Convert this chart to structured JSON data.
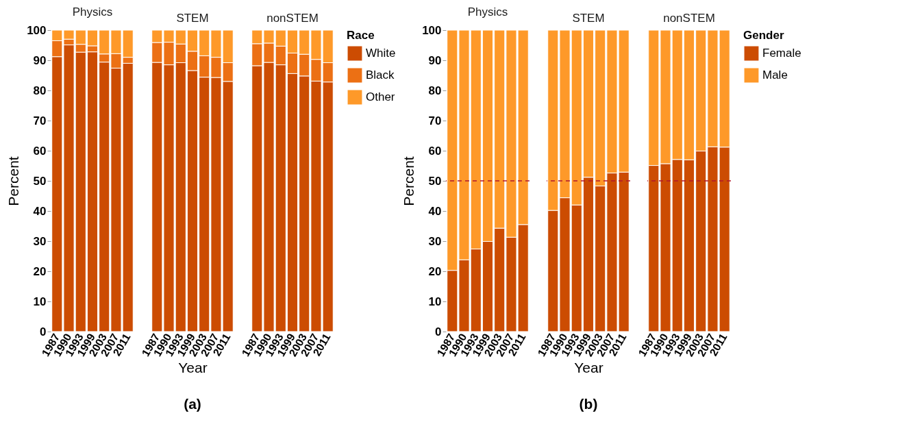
{
  "chart_data": [
    {
      "type": "bar",
      "title": "Physics",
      "ylabel": "Percent",
      "categories": [
        "1987",
        "1990",
        "1993",
        "1999",
        "2003",
        "2007",
        "2011"
      ],
      "stacked": true,
      "ylim": [
        0,
        100
      ],
      "yticks": [
        0,
        10,
        20,
        30,
        40,
        50,
        60,
        70,
        80,
        90,
        100
      ],
      "grid": false,
      "series": [
        {
          "color": "#cc4c02",
          "values": [
            91.2,
            95.1,
            92.7,
            92.8,
            89.4,
            87.4,
            89.0
          ]
        },
        {
          "color": "#ec7014",
          "values": [
            5.3,
            1.9,
            2.6,
            2.0,
            2.7,
            4.8,
            2.0
          ]
        },
        {
          "color": "#fe9929",
          "values": [
            3.5,
            3.0,
            4.7,
            5.2,
            7.9,
            7.8,
            9.0
          ]
        }
      ]
    },
    {
      "type": "bar",
      "title": "STEM",
      "xlabel": "Year",
      "annotations": [
        "(a)"
      ],
      "categories": [
        "1987",
        "1990",
        "1993",
        "1999",
        "2003",
        "2007",
        "2011"
      ],
      "stacked": true,
      "ylim": [
        0,
        100
      ],
      "yticks": [
        0,
        10,
        20,
        30,
        40,
        50,
        60,
        70,
        80,
        90,
        100
      ],
      "tick_labels": "x",
      "grid": false,
      "series": [
        {
          "color": "#cc4c02",
          "values": [
            89.3,
            88.5,
            89.2,
            86.6,
            84.4,
            84.3,
            83.0
          ]
        },
        {
          "color": "#ec7014",
          "values": [
            6.6,
            7.5,
            6.2,
            6.4,
            7.1,
            6.7,
            6.2
          ]
        },
        {
          "color": "#fe9929",
          "values": [
            4.1,
            4.0,
            4.6,
            7.0,
            8.5,
            9.0,
            10.8
          ]
        }
      ]
    },
    {
      "type": "bar",
      "title": "nonSTEM",
      "legend_title": "Race",
      "legend": "right",
      "categories": [
        "1987",
        "1990",
        "1993",
        "1999",
        "2003",
        "2007",
        "2011"
      ],
      "stacked": true,
      "ylim": [
        0,
        100
      ],
      "yticks": [
        0,
        10,
        20,
        30,
        40,
        50,
        60,
        70,
        80,
        90,
        100
      ],
      "tick_labels": "x",
      "grid": false,
      "series": [
        {
          "name": "White",
          "color": "#cc4c02",
          "values": [
            88.2,
            89.3,
            88.5,
            85.6,
            84.8,
            83.1,
            82.8
          ]
        },
        {
          "name": "Black",
          "color": "#ec7014",
          "values": [
            7.3,
            6.4,
            6.2,
            6.8,
            7.2,
            7.2,
            6.4
          ]
        },
        {
          "name": "Other",
          "color": "#fe9929",
          "values": [
            4.5,
            4.3,
            5.3,
            7.6,
            8.0,
            9.7,
            10.8
          ]
        }
      ]
    },
    {
      "type": "bar",
      "title": "Physics",
      "ylabel": "Percent",
      "categories": [
        "1987",
        "1990",
        "1993",
        "1999",
        "2003",
        "2007",
        "2011"
      ],
      "stacked": true,
      "ylim": [
        0,
        100
      ],
      "yticks": [
        0,
        10,
        20,
        30,
        40,
        50,
        60,
        70,
        80,
        90,
        100
      ],
      "grid": false,
      "ref_lines": [
        {
          "axis": "y",
          "value": 50,
          "color": "#b2182b",
          "line_style": "dashed"
        }
      ],
      "series": [
        {
          "color": "#cc4c02",
          "values": [
            20.3,
            23.8,
            27.4,
            29.9,
            34.3,
            31.3,
            35.5
          ]
        },
        {
          "color": "#fe9929",
          "values": [
            79.7,
            76.2,
            72.6,
            70.1,
            65.7,
            68.7,
            64.5
          ]
        }
      ]
    },
    {
      "type": "bar",
      "title": "STEM",
      "xlabel": "Year",
      "annotations": [
        "(b)"
      ],
      "categories": [
        "1987",
        "1990",
        "1993",
        "1999",
        "2003",
        "2007",
        "2011"
      ],
      "stacked": true,
      "ylim": [
        0,
        100
      ],
      "yticks": [
        0,
        10,
        20,
        30,
        40,
        50,
        60,
        70,
        80,
        90,
        100
      ],
      "tick_labels": "x",
      "grid": false,
      "ref_lines": [
        {
          "axis": "y",
          "value": 50,
          "color": "#b2182b",
          "line_style": "dashed"
        }
      ],
      "series": [
        {
          "color": "#cc4c02",
          "values": [
            40.2,
            44.4,
            42.0,
            51.2,
            48.3,
            52.6,
            52.9
          ]
        },
        {
          "color": "#fe9929",
          "values": [
            59.8,
            55.6,
            58.0,
            48.8,
            51.7,
            47.4,
            47.1
          ]
        }
      ]
    },
    {
      "type": "bar",
      "title": "nonSTEM",
      "legend_title": "Gender",
      "legend": "right",
      "categories": [
        "1987",
        "1990",
        "1993",
        "1999",
        "2003",
        "2007",
        "2011"
      ],
      "stacked": true,
      "ylim": [
        0,
        100
      ],
      "yticks": [
        0,
        10,
        20,
        30,
        40,
        50,
        60,
        70,
        80,
        90,
        100
      ],
      "tick_labels": "x",
      "grid": false,
      "ref_lines": [
        {
          "axis": "y",
          "value": 50,
          "color": "#b2182b",
          "line_style": "dashed"
        }
      ],
      "series": [
        {
          "name": "Female",
          "color": "#cc4c02",
          "values": [
            55.1,
            55.7,
            57.1,
            57.0,
            59.9,
            61.3,
            61.2
          ]
        },
        {
          "name": "Male",
          "color": "#fe9929",
          "values": [
            44.9,
            44.3,
            42.9,
            43.0,
            40.1,
            38.7,
            38.8
          ]
        }
      ]
    }
  ]
}
